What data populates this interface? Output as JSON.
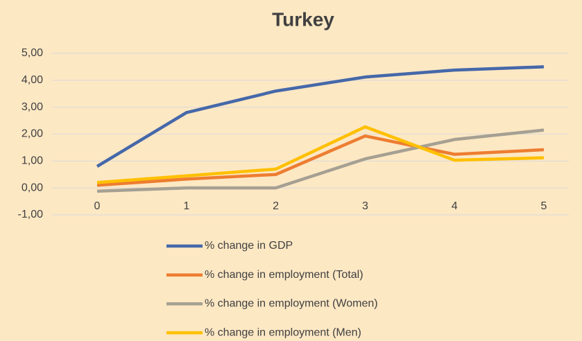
{
  "chart_data": {
    "type": "line",
    "title": "Turkey",
    "categories": [
      "0",
      "1",
      "2",
      "3",
      "4",
      "5"
    ],
    "series": [
      {
        "name": "% change in GDP",
        "color": "#4568a9",
        "values": [
          0.8,
          2.8,
          3.6,
          4.12,
          4.38,
          4.5
        ]
      },
      {
        "name": "% change in employment (Total)",
        "color": "#ed7d31",
        "values": [
          0.1,
          0.33,
          0.5,
          1.93,
          1.25,
          1.42
        ]
      },
      {
        "name": "% change in employment (Women)",
        "color": "#a5a092",
        "values": [
          -0.12,
          0,
          0,
          1.08,
          1.8,
          2.15
        ]
      },
      {
        "name": "% change in employment (Men)",
        "color": "#ffc000",
        "values": [
          0.2,
          0.45,
          0.7,
          2.27,
          1.03,
          1.12
        ]
      }
    ],
    "ylim": [
      -1,
      5
    ],
    "yticks": [
      {
        "value": -1,
        "label": "-1,00"
      },
      {
        "value": 0,
        "label": "0,00"
      },
      {
        "value": 1,
        "label": "1,00"
      },
      {
        "value": 2,
        "label": "2,00"
      },
      {
        "value": 3,
        "label": "3,00"
      },
      {
        "value": 4,
        "label": "4,00"
      },
      {
        "value": 5,
        "label": "5,00"
      }
    ],
    "grid": true,
    "legend": "bottom"
  }
}
